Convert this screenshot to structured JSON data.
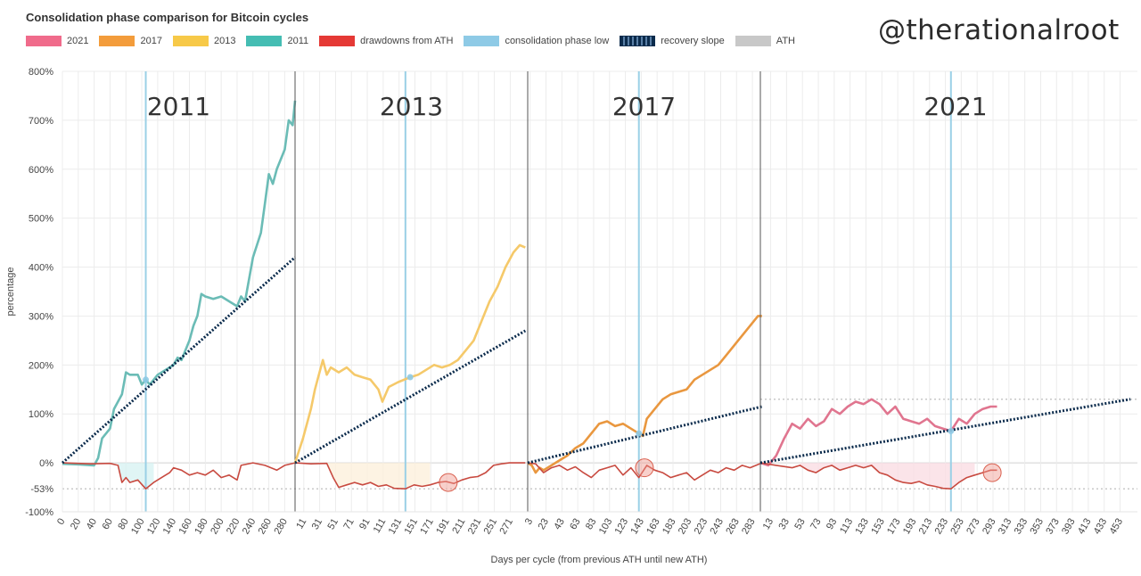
{
  "chart_data": {
    "type": "line",
    "title": "Consolidation phase comparison for Bitcoin cycles",
    "watermark": "@therationalroot",
    "ylabel": "percentage",
    "xlabel": "Days per cycle (from previous ATH until new ATH)",
    "ylim": [
      -100,
      800
    ],
    "y_ticks": [
      "800%",
      "700%",
      "600%",
      "500%",
      "400%",
      "300%",
      "200%",
      "100%",
      "0%",
      "-53%",
      "-100%"
    ],
    "y_tick_values": [
      800,
      700,
      600,
      500,
      400,
      300,
      200,
      100,
      0,
      -53,
      -100
    ],
    "grid": true,
    "legend_position": "top-left",
    "legend": [
      {
        "label": "2021",
        "color": "#f06b8b"
      },
      {
        "label": "2017",
        "color": "#f39c3b"
      },
      {
        "label": "2013",
        "color": "#f7c948"
      },
      {
        "label": "2011",
        "color": "#45bdb3"
      },
      {
        "label": "drawdowns from ATH",
        "color": "#e53935"
      },
      {
        "label": "consolidation phase low",
        "color": "#8ecae6"
      },
      {
        "label": "recovery slope",
        "color": "#0b2b4c"
      },
      {
        "label": "ATH",
        "color": "#c8c8c8"
      }
    ],
    "panels": [
      {
        "cycle": "2011",
        "line_color": "#6bbcb6",
        "fill_color": "#d8f2f2",
        "x_ticks": [
          "0",
          "20",
          "40",
          "60",
          "80",
          "100",
          "120",
          "140",
          "160",
          "180",
          "200",
          "220",
          "240",
          "260",
          "280"
        ],
        "x_start": 0,
        "x_step": 20,
        "x_end": 293,
        "consolidation_low_day": 105,
        "recovery_slope": {
          "from": [
            0,
            0
          ],
          "to": [
            293,
            420
          ]
        },
        "growth": [
          [
            0,
            -2
          ],
          [
            20,
            -3
          ],
          [
            40,
            -5
          ],
          [
            45,
            10
          ],
          [
            50,
            50
          ],
          [
            60,
            70
          ],
          [
            65,
            110
          ],
          [
            75,
            140
          ],
          [
            80,
            185
          ],
          [
            85,
            180
          ],
          [
            95,
            180
          ],
          [
            100,
            160
          ],
          [
            105,
            170
          ],
          [
            110,
            160
          ],
          [
            120,
            180
          ],
          [
            130,
            190
          ],
          [
            140,
            200
          ],
          [
            145,
            215
          ],
          [
            150,
            210
          ],
          [
            160,
            250
          ],
          [
            165,
            280
          ],
          [
            170,
            300
          ],
          [
            175,
            345
          ],
          [
            180,
            340
          ],
          [
            190,
            335
          ],
          [
            200,
            340
          ],
          [
            210,
            330
          ],
          [
            220,
            320
          ],
          [
            225,
            340
          ],
          [
            230,
            330
          ],
          [
            240,
            420
          ],
          [
            250,
            470
          ],
          [
            255,
            530
          ],
          [
            260,
            590
          ],
          [
            265,
            570
          ],
          [
            270,
            600
          ],
          [
            280,
            640
          ],
          [
            285,
            700
          ],
          [
            290,
            690
          ],
          [
            293,
            740
          ]
        ],
        "drawdown": [
          [
            0,
            0
          ],
          [
            35,
            -2
          ],
          [
            60,
            -1
          ],
          [
            70,
            -5
          ],
          [
            75,
            -40
          ],
          [
            80,
            -30
          ],
          [
            85,
            -40
          ],
          [
            95,
            -35
          ],
          [
            105,
            -53
          ],
          [
            115,
            -40
          ],
          [
            125,
            -30
          ],
          [
            135,
            -20
          ],
          [
            140,
            -10
          ],
          [
            150,
            -15
          ],
          [
            160,
            -25
          ],
          [
            170,
            -20
          ],
          [
            180,
            -25
          ],
          [
            190,
            -15
          ],
          [
            200,
            -30
          ],
          [
            210,
            -25
          ],
          [
            220,
            -35
          ],
          [
            225,
            -5
          ],
          [
            240,
            0
          ],
          [
            255,
            -5
          ],
          [
            270,
            -15
          ],
          [
            280,
            -5
          ],
          [
            293,
            0
          ]
        ]
      },
      {
        "cycle": "2013",
        "line_color": "#f5c96a",
        "fill_color": "#fcf0dc",
        "x_ticks": [
          "11",
          "31",
          "51",
          "71",
          "91",
          "111",
          "131",
          "151",
          "171",
          "191",
          "211",
          "231",
          "251",
          "271"
        ],
        "x_start": 11,
        "x_step": 20,
        "x_end": 290,
        "consolidation_low_day": 139,
        "recovery_slope": {
          "from": [
            0,
            0
          ],
          "to": [
            290,
            270
          ]
        },
        "growth": [
          [
            0,
            0
          ],
          [
            10,
            50
          ],
          [
            20,
            110
          ],
          [
            25,
            150
          ],
          [
            30,
            180
          ],
          [
            35,
            210
          ],
          [
            40,
            180
          ],
          [
            45,
            195
          ],
          [
            55,
            185
          ],
          [
            65,
            195
          ],
          [
            75,
            180
          ],
          [
            85,
            175
          ],
          [
            95,
            170
          ],
          [
            105,
            150
          ],
          [
            110,
            125
          ],
          [
            118,
            155
          ],
          [
            130,
            165
          ],
          [
            145,
            175
          ],
          [
            155,
            180
          ],
          [
            165,
            190
          ],
          [
            175,
            200
          ],
          [
            185,
            195
          ],
          [
            195,
            200
          ],
          [
            205,
            210
          ],
          [
            215,
            230
          ],
          [
            225,
            250
          ],
          [
            235,
            290
          ],
          [
            245,
            330
          ],
          [
            255,
            360
          ],
          [
            265,
            400
          ],
          [
            275,
            430
          ],
          [
            283,
            445
          ],
          [
            290,
            440
          ]
        ],
        "drawdown": [
          [
            0,
            0
          ],
          [
            20,
            -2
          ],
          [
            40,
            -1
          ],
          [
            48,
            -30
          ],
          [
            55,
            -50
          ],
          [
            65,
            -45
          ],
          [
            75,
            -40
          ],
          [
            85,
            -45
          ],
          [
            95,
            -40
          ],
          [
            105,
            -48
          ],
          [
            115,
            -45
          ],
          [
            125,
            -52
          ],
          [
            139,
            -53
          ],
          [
            150,
            -45
          ],
          [
            160,
            -48
          ],
          [
            170,
            -45
          ],
          [
            180,
            -40
          ],
          [
            190,
            -38
          ],
          [
            200,
            -42
          ],
          [
            210,
            -35
          ],
          [
            220,
            -30
          ],
          [
            230,
            -28
          ],
          [
            240,
            -20
          ],
          [
            250,
            -5
          ],
          [
            260,
            -2
          ],
          [
            270,
            0
          ],
          [
            290,
            0
          ]
        ],
        "circles": [
          [
            193,
            -40
          ]
        ]
      },
      {
        "cycle": "2017",
        "line_color": "#e9973f",
        "fill_color": "#ffffff",
        "x_ticks": [
          "3",
          "23",
          "43",
          "63",
          "83",
          "103",
          "123",
          "143",
          "163",
          "183",
          "203",
          "223",
          "243",
          "263",
          "283"
        ],
        "x_start": 3,
        "x_step": 20,
        "x_end": 295,
        "consolidation_low_day": 140,
        "recovery_slope": {
          "from": [
            0,
            0
          ],
          "to": [
            295,
            115
          ]
        },
        "growth": [
          [
            0,
            0
          ],
          [
            5,
            -5
          ],
          [
            10,
            -20
          ],
          [
            15,
            -10
          ],
          [
            20,
            -15
          ],
          [
            30,
            -5
          ],
          [
            40,
            5
          ],
          [
            50,
            15
          ],
          [
            60,
            30
          ],
          [
            70,
            40
          ],
          [
            80,
            60
          ],
          [
            90,
            80
          ],
          [
            100,
            85
          ],
          [
            110,
            75
          ],
          [
            120,
            80
          ],
          [
            130,
            70
          ],
          [
            140,
            60
          ],
          [
            145,
            55
          ],
          [
            150,
            90
          ],
          [
            160,
            110
          ],
          [
            170,
            130
          ],
          [
            180,
            140
          ],
          [
            190,
            145
          ],
          [
            200,
            150
          ],
          [
            210,
            170
          ],
          [
            220,
            180
          ],
          [
            230,
            190
          ],
          [
            240,
            200
          ],
          [
            250,
            220
          ],
          [
            260,
            240
          ],
          [
            270,
            260
          ],
          [
            280,
            280
          ],
          [
            290,
            300
          ],
          [
            295,
            300
          ]
        ],
        "drawdown": [
          [
            0,
            0
          ],
          [
            10,
            -2
          ],
          [
            20,
            -20
          ],
          [
            30,
            -10
          ],
          [
            40,
            -5
          ],
          [
            50,
            -15
          ],
          [
            60,
            -8
          ],
          [
            70,
            -20
          ],
          [
            80,
            -30
          ],
          [
            90,
            -15
          ],
          [
            100,
            -10
          ],
          [
            110,
            -5
          ],
          [
            120,
            -25
          ],
          [
            130,
            -10
          ],
          [
            140,
            -30
          ],
          [
            150,
            -5
          ],
          [
            160,
            -15
          ],
          [
            170,
            -20
          ],
          [
            180,
            -30
          ],
          [
            190,
            -25
          ],
          [
            200,
            -20
          ],
          [
            210,
            -35
          ],
          [
            220,
            -25
          ],
          [
            230,
            -15
          ],
          [
            240,
            -20
          ],
          [
            250,
            -10
          ],
          [
            260,
            -15
          ],
          [
            270,
            -5
          ],
          [
            280,
            -10
          ],
          [
            295,
            0
          ]
        ],
        "circles": [
          [
            147,
            -10
          ]
        ]
      },
      {
        "cycle": "2021",
        "line_color": "#e0758f",
        "fill_color": "#fadde3",
        "x_ticks": [
          "13",
          "33",
          "53",
          "73",
          "93",
          "113",
          "133",
          "153",
          "173",
          "193",
          "213",
          "233",
          "253",
          "273",
          "293",
          "313",
          "333",
          "353",
          "373",
          "393",
          "413",
          "433",
          "453"
        ],
        "x_start": 13,
        "x_step": 20,
        "x_end": 466,
        "consolidation_low_day": 240,
        "ath_level": 130,
        "recovery_slope": {
          "from": [
            0,
            0
          ],
          "to": [
            466,
            130
          ]
        },
        "growth": [
          [
            0,
            0
          ],
          [
            10,
            -5
          ],
          [
            20,
            15
          ],
          [
            30,
            50
          ],
          [
            40,
            80
          ],
          [
            50,
            70
          ],
          [
            60,
            90
          ],
          [
            70,
            75
          ],
          [
            80,
            85
          ],
          [
            90,
            110
          ],
          [
            100,
            100
          ],
          [
            110,
            115
          ],
          [
            120,
            125
          ],
          [
            130,
            120
          ],
          [
            140,
            130
          ],
          [
            150,
            120
          ],
          [
            160,
            100
          ],
          [
            170,
            115
          ],
          [
            180,
            90
          ],
          [
            190,
            85
          ],
          [
            200,
            80
          ],
          [
            210,
            90
          ],
          [
            220,
            75
          ],
          [
            230,
            70
          ],
          [
            240,
            65
          ],
          [
            250,
            90
          ],
          [
            260,
            80
          ],
          [
            270,
            100
          ],
          [
            280,
            110
          ],
          [
            290,
            115
          ],
          [
            298,
            115
          ]
        ],
        "drawdown": [
          [
            0,
            0
          ],
          [
            20,
            -5
          ],
          [
            40,
            -10
          ],
          [
            50,
            -5
          ],
          [
            60,
            -15
          ],
          [
            70,
            -20
          ],
          [
            80,
            -10
          ],
          [
            90,
            -5
          ],
          [
            100,
            -15
          ],
          [
            110,
            -10
          ],
          [
            120,
            -5
          ],
          [
            130,
            -10
          ],
          [
            140,
            -5
          ],
          [
            150,
            -20
          ],
          [
            160,
            -25
          ],
          [
            170,
            -35
          ],
          [
            180,
            -40
          ],
          [
            190,
            -42
          ],
          [
            200,
            -38
          ],
          [
            210,
            -45
          ],
          [
            220,
            -48
          ],
          [
            230,
            -52
          ],
          [
            240,
            -53
          ],
          [
            250,
            -40
          ],
          [
            260,
            -30
          ],
          [
            270,
            -25
          ],
          [
            280,
            -20
          ],
          [
            290,
            -15
          ],
          [
            298,
            -15
          ]
        ],
        "circles": [
          [
            292,
            -20
          ]
        ]
      }
    ]
  }
}
